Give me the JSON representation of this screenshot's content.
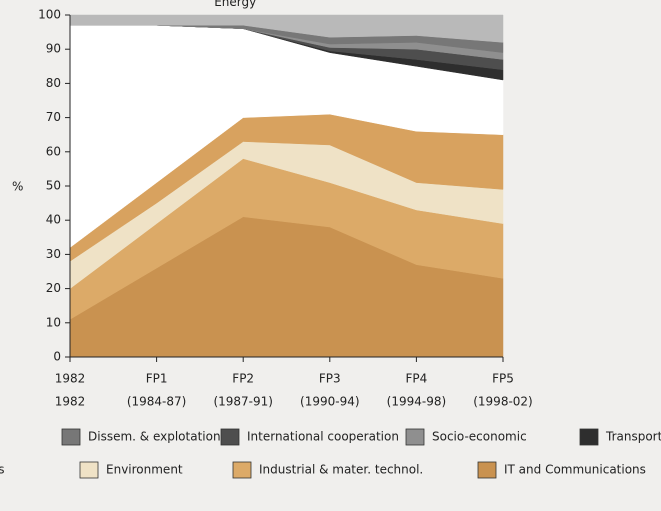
{
  "chart_data": {
    "type": "stacked_area",
    "y_label": "%",
    "categories": [
      "1982",
      "FP1",
      "FP2",
      "FP3",
      "FP4",
      "FP5"
    ],
    "periods": [
      "1982",
      "(1984-87)",
      "(1987-91)",
      "(1990-94)",
      "(1994-98)",
      "(1998-02)"
    ],
    "ylim": [
      0,
      100
    ],
    "yticks": [
      0,
      10,
      20,
      30,
      40,
      50,
      60,
      70,
      80,
      90,
      100
    ],
    "series": [
      {
        "name": "IT and Communications",
        "color": "#c99250",
        "values": [
          11,
          26,
          41,
          38,
          27,
          23
        ]
      },
      {
        "name": "Industrial & mater. technol.",
        "color": "#dcaa68",
        "values": [
          9,
          13,
          17,
          13,
          16,
          16
        ]
      },
      {
        "name": "Environment",
        "color": "#efe2c6",
        "values": [
          8,
          6,
          5,
          11,
          8,
          10
        ]
      },
      {
        "name": "iences",
        "color": "#d8a25f",
        "values": [
          4,
          6,
          7,
          9,
          15,
          16
        ]
      },
      {
        "name": "Energy",
        "color": "#ffffff",
        "values": [
          65,
          46,
          26,
          18,
          19,
          16
        ]
      },
      {
        "name": "Transport",
        "color": "#2e2e2e",
        "values": [
          0,
          0,
          0,
          0.5,
          2,
          3
        ]
      },
      {
        "name": "International cooperation",
        "color": "#4e4e4e",
        "values": [
          0,
          0,
          0,
          1,
          3,
          3
        ]
      },
      {
        "name": "Socio-economic",
        "color": "#8f8f8f",
        "values": [
          0,
          0,
          0,
          1,
          2,
          2
        ]
      },
      {
        "name": "Dissem. & explotation",
        "color": "#777777",
        "values": [
          0,
          0,
          1,
          2,
          2,
          3
        ]
      },
      {
        "name": "s",
        "color": "#b9b9b9",
        "values": [
          3,
          3,
          3,
          6.5,
          6,
          8
        ]
      }
    ]
  }
}
